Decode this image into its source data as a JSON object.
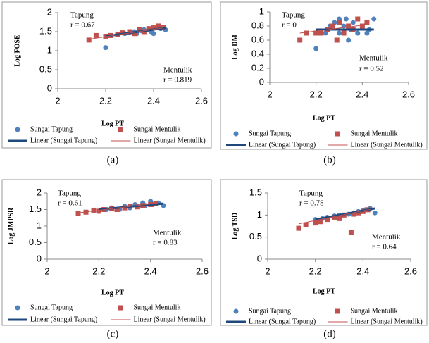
{
  "chart_data": [
    {
      "type": "scatter",
      "caption": "(a)",
      "xlabel": "Log PT",
      "ylabel": "Log FOSE",
      "xlim": [
        2,
        2.6
      ],
      "xticks": [
        2,
        2.2,
        2.4,
        2.6
      ],
      "ylim": [
        0,
        2
      ],
      "yticks": [
        0,
        0.5,
        1,
        1.5,
        2
      ],
      "series": [
        {
          "name": "Sungai Tapung",
          "color": "#4f81bd",
          "marker": "circle",
          "x": [
            2.2,
            2.22,
            2.25,
            2.28,
            2.3,
            2.32,
            2.33,
            2.35,
            2.36,
            2.38,
            2.39,
            2.4,
            2.4,
            2.42,
            2.43,
            2.45
          ],
          "values": [
            1.08,
            1.4,
            1.42,
            1.45,
            1.48,
            1.5,
            1.45,
            1.52,
            1.55,
            1.55,
            1.5,
            1.45,
            1.6,
            1.62,
            1.58,
            1.55
          ]
        },
        {
          "name": "Sungai Mentulik",
          "color": "#c0504d",
          "marker": "square",
          "x": [
            2.13,
            2.16,
            2.2,
            2.22,
            2.25,
            2.27,
            2.3,
            2.32,
            2.34,
            2.36,
            2.38,
            2.4,
            2.42,
            2.44
          ],
          "values": [
            1.28,
            1.4,
            1.38,
            1.4,
            1.43,
            1.47,
            1.5,
            1.45,
            1.55,
            1.5,
            1.58,
            1.6,
            1.65,
            1.62
          ]
        }
      ],
      "trendlines": [
        {
          "name": "Linear (Sungai Tapung)",
          "color": "#1f497d",
          "width": 3,
          "x": [
            2.2,
            2.45
          ],
          "values": [
            1.38,
            1.6
          ]
        },
        {
          "name": "Linear (Sungai Mentulik)",
          "color": "#c0504d",
          "width": 1,
          "x": [
            2.13,
            2.44
          ],
          "values": [
            1.3,
            1.6
          ]
        }
      ],
      "annotations": [
        {
          "text": "Tapung",
          "color": "#4f81bd"
        },
        {
          "text": "r = 0.67",
          "color": "#4f81bd"
        },
        {
          "text": "Mentulik",
          "color": "#c0504d"
        },
        {
          "text": "r = 0.819",
          "color": "#c0504d"
        }
      ]
    },
    {
      "type": "scatter",
      "caption": "(b)",
      "xlabel": "Log PT",
      "ylabel": "Log DM",
      "xlim": [
        2,
        2.6
      ],
      "xticks": [
        2,
        2.2,
        2.4,
        2.6
      ],
      "ylim": [
        0,
        1
      ],
      "yticks": [
        0,
        0.2,
        0.4,
        0.6,
        0.8,
        1
      ],
      "series": [
        {
          "name": "Sungai Tapung",
          "color": "#4f81bd",
          "marker": "circle",
          "x": [
            2.2,
            2.24,
            2.26,
            2.28,
            2.3,
            2.3,
            2.32,
            2.33,
            2.34,
            2.35,
            2.36,
            2.38,
            2.4,
            2.42,
            2.43,
            2.45
          ],
          "values": [
            0.48,
            0.7,
            0.8,
            0.85,
            0.7,
            0.9,
            0.8,
            0.9,
            0.6,
            0.75,
            0.85,
            0.7,
            0.8,
            0.7,
            0.75,
            0.9
          ]
        },
        {
          "name": "Sungai Mentulik",
          "color": "#c0504d",
          "marker": "square",
          "x": [
            2.13,
            2.16,
            2.2,
            2.22,
            2.25,
            2.27,
            2.29,
            2.3,
            2.32,
            2.34,
            2.36,
            2.38,
            2.4,
            2.42
          ],
          "values": [
            0.6,
            0.7,
            0.7,
            0.7,
            0.75,
            0.8,
            0.6,
            0.85,
            0.7,
            0.8,
            0.75,
            0.9,
            0.8,
            0.85
          ]
        }
      ],
      "trendlines": [
        {
          "name": "Linear (Sungai Tapung)",
          "color": "#1f497d",
          "width": 3,
          "x": [
            2.2,
            2.45
          ],
          "values": [
            0.75,
            0.75
          ]
        },
        {
          "name": "Linear (Sungai Mentulik)",
          "color": "#c0504d",
          "width": 1,
          "x": [
            2.13,
            2.42
          ],
          "values": [
            0.7,
            0.82
          ]
        }
      ],
      "annotations": [
        {
          "text": "Tapung",
          "color": "#4f81bd"
        },
        {
          "text": "r = 0",
          "color": "#4f81bd"
        },
        {
          "text": "Mentulik",
          "color": "#c0504d"
        },
        {
          "text": "r = 0.52",
          "color": "#c0504d"
        }
      ]
    },
    {
      "type": "scatter",
      "caption": "(c)",
      "xlabel": "Log PT",
      "ylabel": "Log JMPSR",
      "xlim": [
        2,
        2.6
      ],
      "xticks": [
        2,
        2.2,
        2.4,
        2.6
      ],
      "ylim": [
        0,
        2
      ],
      "yticks": [
        0,
        0.5,
        1,
        1.5,
        2
      ],
      "series": [
        {
          "name": "Sungai Tapung",
          "color": "#4f81bd",
          "marker": "circle",
          "x": [
            2.2,
            2.23,
            2.25,
            2.28,
            2.3,
            2.32,
            2.34,
            2.35,
            2.37,
            2.38,
            2.4,
            2.41,
            2.43,
            2.45
          ],
          "values": [
            1.45,
            1.5,
            1.55,
            1.5,
            1.6,
            1.55,
            1.65,
            1.6,
            1.7,
            1.62,
            1.75,
            1.65,
            1.7,
            1.62
          ]
        },
        {
          "name": "Sungai Mentulik",
          "color": "#c0504d",
          "marker": "square",
          "x": [
            2.12,
            2.15,
            2.18,
            2.2,
            2.22,
            2.25,
            2.27,
            2.3,
            2.32,
            2.35,
            2.37,
            2.4,
            2.42
          ],
          "values": [
            1.38,
            1.42,
            1.48,
            1.45,
            1.5,
            1.52,
            1.5,
            1.55,
            1.6,
            1.58,
            1.62,
            1.65,
            1.68
          ]
        }
      ],
      "trendlines": [
        {
          "name": "Linear (Sungai Tapung)",
          "color": "#1f497d",
          "width": 3,
          "x": [
            2.2,
            2.45
          ],
          "values": [
            1.5,
            1.68
          ]
        },
        {
          "name": "Linear (Sungai Mentulik)",
          "color": "#c0504d",
          "width": 1,
          "x": [
            2.12,
            2.43
          ],
          "values": [
            1.4,
            1.7
          ]
        }
      ],
      "annotations": [
        {
          "text": "Tapung",
          "color": "#4f81bd"
        },
        {
          "text": "r = 0.61",
          "color": "#4f81bd"
        },
        {
          "text": "Mentulik",
          "color": "#c0504d"
        },
        {
          "text": "r = 0.83",
          "color": "#c0504d"
        }
      ]
    },
    {
      "type": "scatter",
      "caption": "(d)",
      "xlabel": "Log PT",
      "ylabel": "Log TSD",
      "xlim": [
        2,
        2.6
      ],
      "xticks": [
        2,
        2.2,
        2.4,
        2.6
      ],
      "ylim": [
        0,
        1.5
      ],
      "yticks": [
        0,
        0.5,
        1,
        1.5
      ],
      "series": [
        {
          "name": "Sungai Tapung",
          "color": "#4f81bd",
          "marker": "circle",
          "x": [
            2.2,
            2.23,
            2.25,
            2.28,
            2.3,
            2.32,
            2.34,
            2.36,
            2.38,
            2.4,
            2.41,
            2.43,
            2.45
          ],
          "values": [
            0.9,
            0.92,
            0.95,
            0.98,
            1.0,
            1.0,
            1.02,
            1.05,
            1.08,
            1.1,
            1.12,
            1.15,
            1.05
          ]
        },
        {
          "name": "Sungai Mentulik",
          "color": "#c0504d",
          "marker": "square",
          "x": [
            2.13,
            2.16,
            2.2,
            2.22,
            2.25,
            2.28,
            2.3,
            2.32,
            2.35,
            2.36,
            2.38,
            2.4,
            2.42
          ],
          "values": [
            0.7,
            0.78,
            0.82,
            0.85,
            0.9,
            0.95,
            0.92,
            1.0,
            0.6,
            1.02,
            1.05,
            1.08,
            1.12
          ]
        }
      ],
      "trendlines": [
        {
          "name": "Linear (Sungai Tapung)",
          "color": "#1f497d",
          "width": 3,
          "x": [
            2.2,
            2.45
          ],
          "values": [
            0.9,
            1.15
          ]
        },
        {
          "name": "Linear (Sungai Mentulik)",
          "color": "#c0504d",
          "width": 1,
          "x": [
            2.13,
            2.43
          ],
          "values": [
            0.8,
            1.13
          ]
        }
      ],
      "annotations": [
        {
          "text": "Tapung",
          "color": "#4f81bd"
        },
        {
          "text": "r = 0.78",
          "color": "#4f81bd"
        },
        {
          "text": "Mentulik",
          "color": "#c0504d"
        },
        {
          "text": "r =  0.64",
          "color": "#c0504d"
        }
      ]
    }
  ]
}
